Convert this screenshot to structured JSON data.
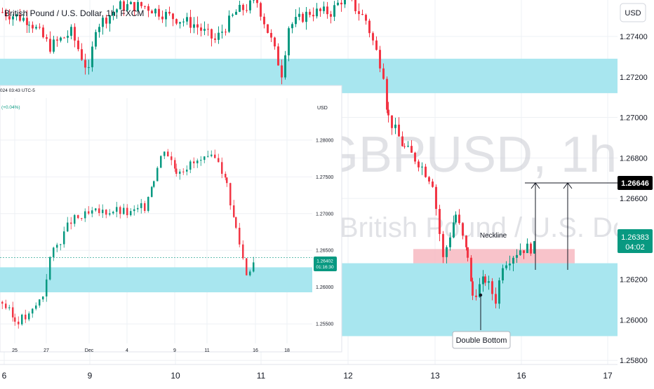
{
  "colors": {
    "bull": "#089981",
    "bear": "#f23645",
    "zone": "#a8e6ef",
    "pink": "#f7b9c1",
    "grid": "#eef0f4",
    "axis_text": "#131722",
    "price_badge": "#089981",
    "target_badge": "#000000"
  },
  "chart_data": [
    {
      "id": "main",
      "type": "candlestick",
      "title": "British Pound / U.S. Dollar, 1h, FXCM",
      "watermark_symbol": "GBPUSD, 1h",
      "watermark_name": "British Pound / U.S. Dollar",
      "currency": "USD",
      "ylim": [
        1.2578,
        1.2758
      ],
      "y_ticks": [
        "1.27400",
        "1.27200",
        "1.27000",
        "1.26800",
        "1.26600",
        "1.26200",
        "1.26000",
        "1.25800"
      ],
      "x_ticks": [
        "6",
        "9",
        "10",
        "11",
        "12",
        "13",
        "16",
        "17"
      ],
      "last_price": "1.26383",
      "countdown": "04:02",
      "target_price": "1.26646",
      "zones": [
        {
          "from": 1.2712,
          "to": 1.2729
        },
        {
          "from": 1.2592,
          "to": 1.2628
        }
      ],
      "pink_zone": {
        "from": 1.2628,
        "to": 1.2635
      },
      "annotations": {
        "neckline": "Neckline",
        "double_bottom": "Double Bottom"
      }
    },
    {
      "id": "inset",
      "type": "candlestick",
      "header": "024 03:43 UTC-5",
      "change": "(+0.04%)",
      "currency": "USD",
      "ylim": [
        1.2533,
        1.2838
      ],
      "y_ticks": [
        "1.28000",
        "1.27500",
        "1.27000",
        "1.26500",
        "1.26000",
        "1.25500"
      ],
      "x_ticks": [
        "25",
        "27",
        "Dec",
        "4",
        "9",
        "11",
        "16",
        "18"
      ],
      "last_price": "1.26402",
      "countdown": "01:16:30",
      "zone": {
        "from": 1.2593,
        "to": 1.2627
      }
    }
  ]
}
